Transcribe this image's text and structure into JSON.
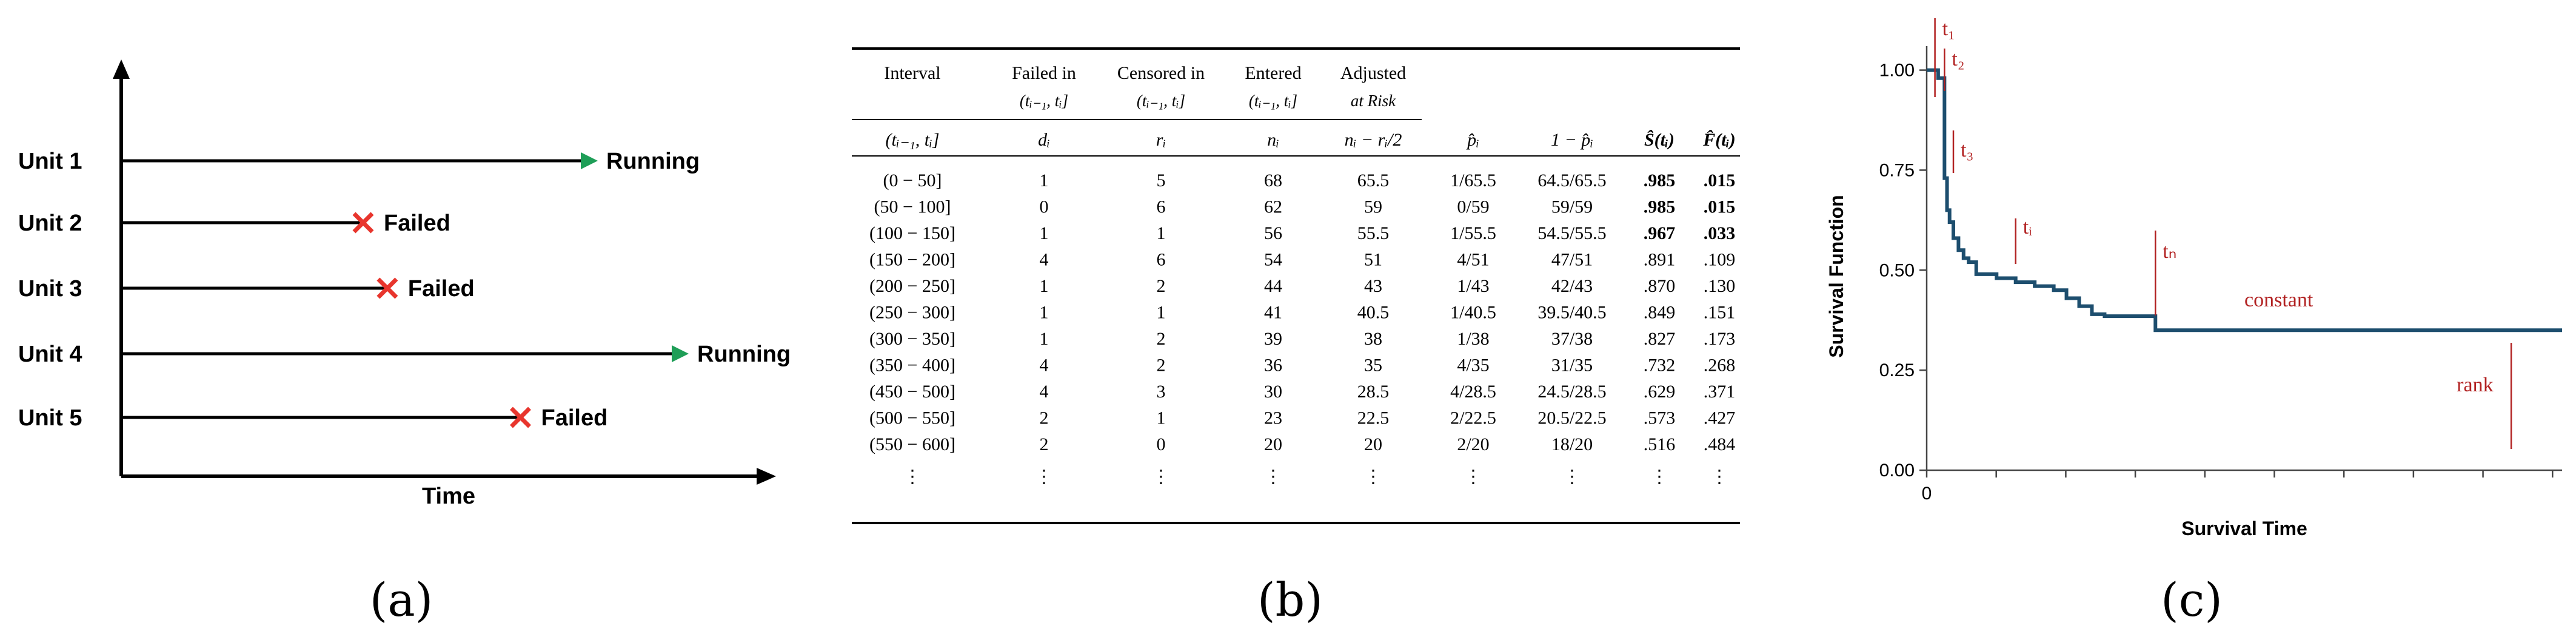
{
  "panel_a": {
    "units": [
      {
        "label": "Unit 1",
        "status": "Running",
        "end_time": 1.0
      },
      {
        "label": "Unit 2",
        "status": "Failed",
        "end_time": 0.5
      },
      {
        "label": "Unit 3",
        "status": "Failed",
        "end_time": 0.55
      },
      {
        "label": "Unit 4",
        "status": "Running",
        "end_time": 1.0
      },
      {
        "label": "Unit 5",
        "status": "Failed",
        "end_time": 0.75
      }
    ],
    "xlabel": "Time",
    "caption": "(a)",
    "colors": {
      "running": "#1e9e57",
      "failed": "#e8352d",
      "line": "#000000"
    }
  },
  "panel_b": {
    "caption": "(b)",
    "header_top": [
      "Interval",
      "Failed in",
      "Censored in",
      "Entered",
      "Adjusted",
      "",
      "",
      "",
      ""
    ],
    "header_mid": [
      "",
      "(tᵢ₋₁, tᵢ]",
      "(tᵢ₋₁, tᵢ]",
      "(tᵢ₋₁, tᵢ]",
      "at Risk",
      "",
      "",
      "",
      ""
    ],
    "header_bottom": [
      "(tᵢ₋₁, tᵢ]",
      "dᵢ",
      "rᵢ",
      "nᵢ",
      "nᵢ − rᵢ/2",
      "p̂ᵢ",
      "1 − p̂ᵢ",
      "Ŝ(tᵢ)",
      "F̂(tᵢ)"
    ],
    "rows": [
      [
        "(0 − 50]",
        "1",
        "5",
        "68",
        "65.5",
        "1/65.5",
        "64.5/65.5",
        ".985",
        ".015"
      ],
      [
        "(50 − 100]",
        "0",
        "6",
        "62",
        "59",
        "0/59",
        "59/59",
        ".985",
        ".015"
      ],
      [
        "(100 − 150]",
        "1",
        "1",
        "56",
        "55.5",
        "1/55.5",
        "54.5/55.5",
        ".967",
        ".033"
      ],
      [
        "(150 − 200]",
        "4",
        "6",
        "54",
        "51",
        "4/51",
        "47/51",
        ".891",
        ".109"
      ],
      [
        "(200 − 250]",
        "1",
        "2",
        "44",
        "43",
        "1/43",
        "42/43",
        ".870",
        ".130"
      ],
      [
        "(250 − 300]",
        "1",
        "1",
        "41",
        "40.5",
        "1/40.5",
        "39.5/40.5",
        ".849",
        ".151"
      ],
      [
        "(300 − 350]",
        "1",
        "2",
        "39",
        "38",
        "1/38",
        "37/38",
        ".827",
        ".173"
      ],
      [
        "(350 − 400]",
        "4",
        "2",
        "36",
        "35",
        "4/35",
        "31/35",
        ".732",
        ".268"
      ],
      [
        "(450 − 500]",
        "4",
        "3",
        "30",
        "28.5",
        "4/28.5",
        "24.5/28.5",
        ".629",
        ".371"
      ],
      [
        "(500 − 550]",
        "2",
        "1",
        "23",
        "22.5",
        "2/22.5",
        "20.5/22.5",
        ".573",
        ".427"
      ],
      [
        "(550 − 600]",
        "2",
        "0",
        "20",
        "20",
        "2/20",
        "18/20",
        ".516",
        ".484"
      ],
      [
        "⋮",
        "⋮",
        "⋮",
        "⋮",
        "⋮",
        "⋮",
        "⋮",
        "⋮",
        "⋮"
      ]
    ]
  },
  "panel_c": {
    "caption": "(c)",
    "chart_data": {
      "type": "line",
      "xlabel": "Survival Time",
      "ylabel": "Survival Function",
      "yticks": [
        "1.00",
        "0.75",
        "0.50",
        "0.25",
        "0.00"
      ],
      "ytick_values": [
        1.0,
        0.75,
        0.5,
        0.25,
        0.0
      ],
      "xtick_label": "0",
      "ylim": [
        0,
        1.06
      ],
      "xlim": [
        0,
        1
      ],
      "series": [
        {
          "x": [
            0,
            0.018,
            0.018,
            0.028,
            0.028,
            0.032,
            0.036,
            0.042,
            0.05,
            0.058,
            0.066,
            0.078,
            0.09,
            0.11,
            0.14,
            0.17,
            0.2,
            0.22,
            0.24,
            0.26,
            0.28,
            0.3,
            0.36,
            0.36,
            1.0
          ],
          "y": [
            1.0,
            1.0,
            0.98,
            0.98,
            0.73,
            0.65,
            0.62,
            0.58,
            0.55,
            0.53,
            0.52,
            0.49,
            0.49,
            0.48,
            0.47,
            0.46,
            0.45,
            0.43,
            0.41,
            0.39,
            0.385,
            0.385,
            0.385,
            0.35,
            0.35
          ]
        }
      ],
      "annotations": [
        {
          "text": "t₁",
          "x": 0.013
        },
        {
          "text": "t₂",
          "x": 0.028
        },
        {
          "text": "t₃",
          "x": 0.042
        },
        {
          "text": "tᵢ",
          "x": 0.14
        },
        {
          "text": "tₙ",
          "x": 0.36
        },
        {
          "text": "constant",
          "x": 0.5
        },
        {
          "text": "rank",
          "x": 0.9
        }
      ]
    },
    "colors": {
      "curve": "#1d4e6e",
      "annot": "#b22222",
      "axis": "#444444"
    }
  }
}
